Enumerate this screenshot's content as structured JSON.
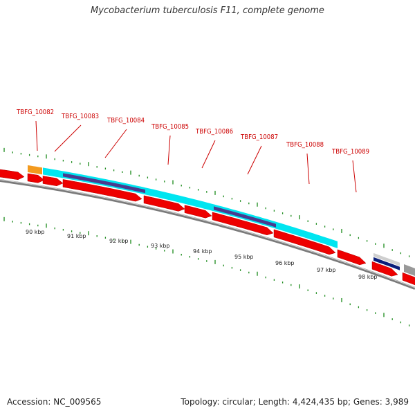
{
  "title": "Mycobacterium tuberculosis F11, complete genome",
  "footer": {
    "accession": "Accession: NC_009565",
    "summary": "Topology: circular; Length: 4,424,435 bp; Genes: 3,989"
  },
  "colors": {
    "cds": "#ee0000",
    "gene_block": "#00e5f0",
    "domain": "#4a3a8e",
    "orange": "#f39a1e",
    "gray": "#999999",
    "navy": "#0a1e7a",
    "backbone": "#7a7a7a",
    "tick": "#1a8a1a",
    "label": "#cc0000"
  },
  "gene_labels": [
    "TBFG_10082",
    "TBFG_10083",
    "TBFG_10084",
    "TBFG_10085",
    "TBFG_10086",
    "TBFG_10087",
    "TBFG_10088",
    "TBFG_10089"
  ],
  "kbp_labels": [
    "90 kbp",
    "91 kbp",
    "92 kbp",
    "93 kbp",
    "94 kbp",
    "95 kbp",
    "96 kbp",
    "97 kbp",
    "98 kbp"
  ]
}
